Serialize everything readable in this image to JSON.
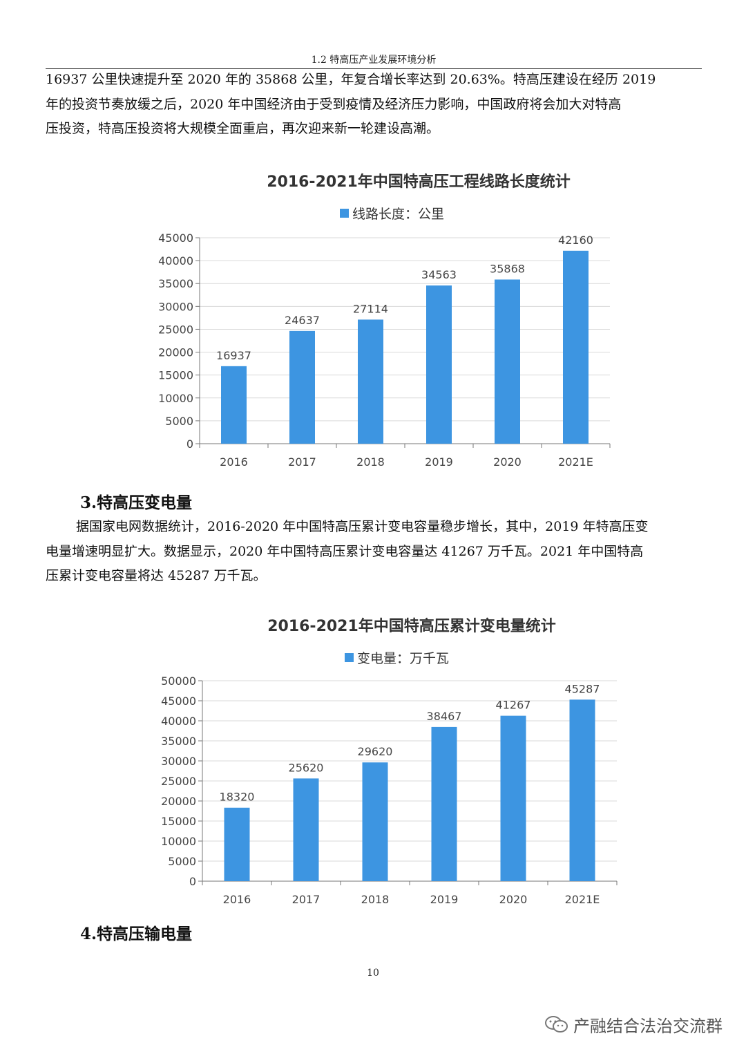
{
  "header": {
    "title": "1.2 特高压产业发展环境分析"
  },
  "intro_paragraph": {
    "lines": [
      "16937 公里快速提升至 2020 年的 35868 公里，年复合增长率达到 20.63%。特高压建设在经历 2019",
      "年的投资节奏放缓之后，2020 年中国经济由于受到疫情及经济压力影响，中国政府将会加大对特高",
      "压投资，特高压投资将大规模全面重启，再次迎来新一轮建设高潮。"
    ]
  },
  "section3": {
    "heading": "3.特高压变电量",
    "lines": [
      "据国家电网数据统计，2016-2020 年中国特高压累计变电容量稳步增长，其中，2019 年特高压变",
      "电量增速明显扩大。数据显示，2020 年中国特高压累计变电容量达 41267 万千瓦。2021 年中国特高",
      "压累计变电容量将达 45287 万千瓦。"
    ]
  },
  "section4": {
    "heading": "4.特高压输电量"
  },
  "page_number": "10",
  "wechat_watermark": "产融结合法治交流群",
  "chart_data": [
    {
      "type": "bar",
      "title": "2016-2021年中国特高压工程线路长度统计",
      "legend": "线路长度：公里",
      "legend_position": "top",
      "categories": [
        "2016",
        "2017",
        "2018",
        "2019",
        "2020",
        "2021E"
      ],
      "series": [
        {
          "name": "线路长度：公里",
          "values": [
            16937,
            24637,
            27114,
            34563,
            35868,
            42160
          ]
        }
      ],
      "data_labels": [
        "16937",
        "24637",
        "27114",
        "34563",
        "35868",
        "42160"
      ],
      "ylim": [
        0,
        45000
      ],
      "yticks": [
        0,
        5000,
        10000,
        15000,
        20000,
        25000,
        30000,
        35000,
        40000,
        45000
      ],
      "grid": true,
      "color": "#3d95e1"
    },
    {
      "type": "bar",
      "title": "2016-2021年中国特高压累计变电量统计",
      "legend": "变电量：万千瓦",
      "legend_position": "top",
      "categories": [
        "2016",
        "2017",
        "2018",
        "2019",
        "2020",
        "2021E"
      ],
      "series": [
        {
          "name": "变电量：万千瓦",
          "values": [
            18320,
            25620,
            29620,
            38467,
            41267,
            45287
          ]
        }
      ],
      "data_labels": [
        "18320",
        "25620",
        "29620",
        "38467",
        "41267",
        "45287"
      ],
      "ylim": [
        0,
        50000
      ],
      "yticks": [
        0,
        5000,
        10000,
        15000,
        20000,
        25000,
        30000,
        35000,
        40000,
        45000,
        50000
      ],
      "grid": true,
      "color": "#3d95e1"
    }
  ]
}
